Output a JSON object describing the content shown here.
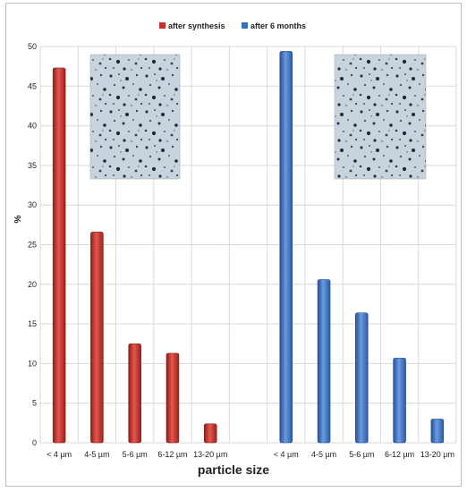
{
  "chart_data": {
    "type": "bar",
    "categories": [
      "< 4 µm",
      "4-5 µm",
      "5-6 µm",
      "6-12 µm",
      "13-20 µm",
      "< 4 µm",
      "4-5 µm",
      "5-6 µm",
      "6-12 µm",
      "13-20 µm"
    ],
    "series": [
      {
        "name": "after synthesis",
        "color": "#c8302a",
        "values": [
          47.3,
          26.6,
          12.5,
          11.3,
          2.4,
          null,
          null,
          null,
          null,
          null
        ]
      },
      {
        "name": "after 6 months",
        "color": "#3a6fc0",
        "values": [
          null,
          null,
          null,
          null,
          null,
          49.4,
          20.6,
          16.4,
          10.7,
          3.0
        ]
      }
    ],
    "xlabel": "particle size",
    "ylabel": "%",
    "ylim": [
      0,
      50
    ],
    "yticks": [
      0,
      5,
      10,
      15,
      20,
      25,
      30,
      35,
      40,
      45,
      50
    ],
    "grid": true,
    "legend": "top-center",
    "insets": [
      {
        "name": "micrograph-after-synthesis",
        "near": "after synthesis"
      },
      {
        "name": "micrograph-after-6-months",
        "near": "after 6 months"
      }
    ]
  }
}
